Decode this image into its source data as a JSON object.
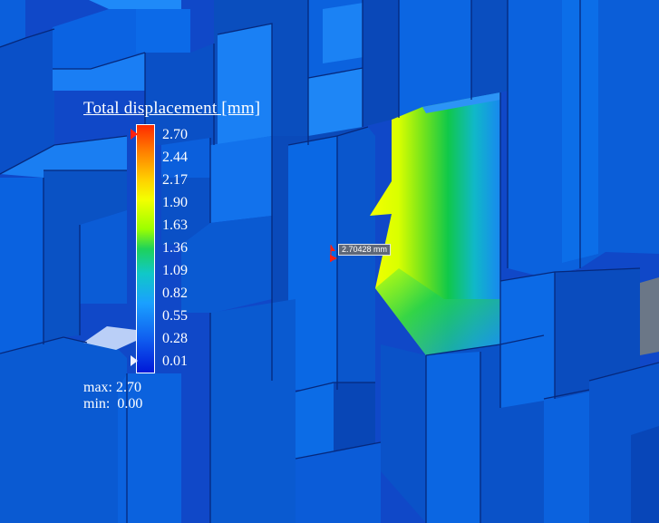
{
  "legend": {
    "title": "Total displacement [mm]",
    "ticks": [
      "2.70",
      "2.44",
      "2.17",
      "1.90",
      "1.63",
      "1.36",
      "1.09",
      "0.82",
      "0.55",
      "0.28",
      "0.01"
    ],
    "max_label": "max: 2.70",
    "min_label": "min:  0.00",
    "max_value": 2.7,
    "min_value": 0.0,
    "colormap": [
      "#ff2a00",
      "#ff7a00",
      "#ffd000",
      "#f4ff00",
      "#9cff00",
      "#1ed25a",
      "#10c8c8",
      "#1aa0ff",
      "#1060f0",
      "#0018d8"
    ]
  },
  "probe": {
    "label": "2.70428 mm",
    "marker_color": "#ff2010"
  },
  "scene": {
    "background_color": "#1048c8",
    "face_colors": {
      "front": "#0b63e2",
      "top": "#1b84f6",
      "side": "#0646b8",
      "deep": "#0836a2"
    }
  }
}
